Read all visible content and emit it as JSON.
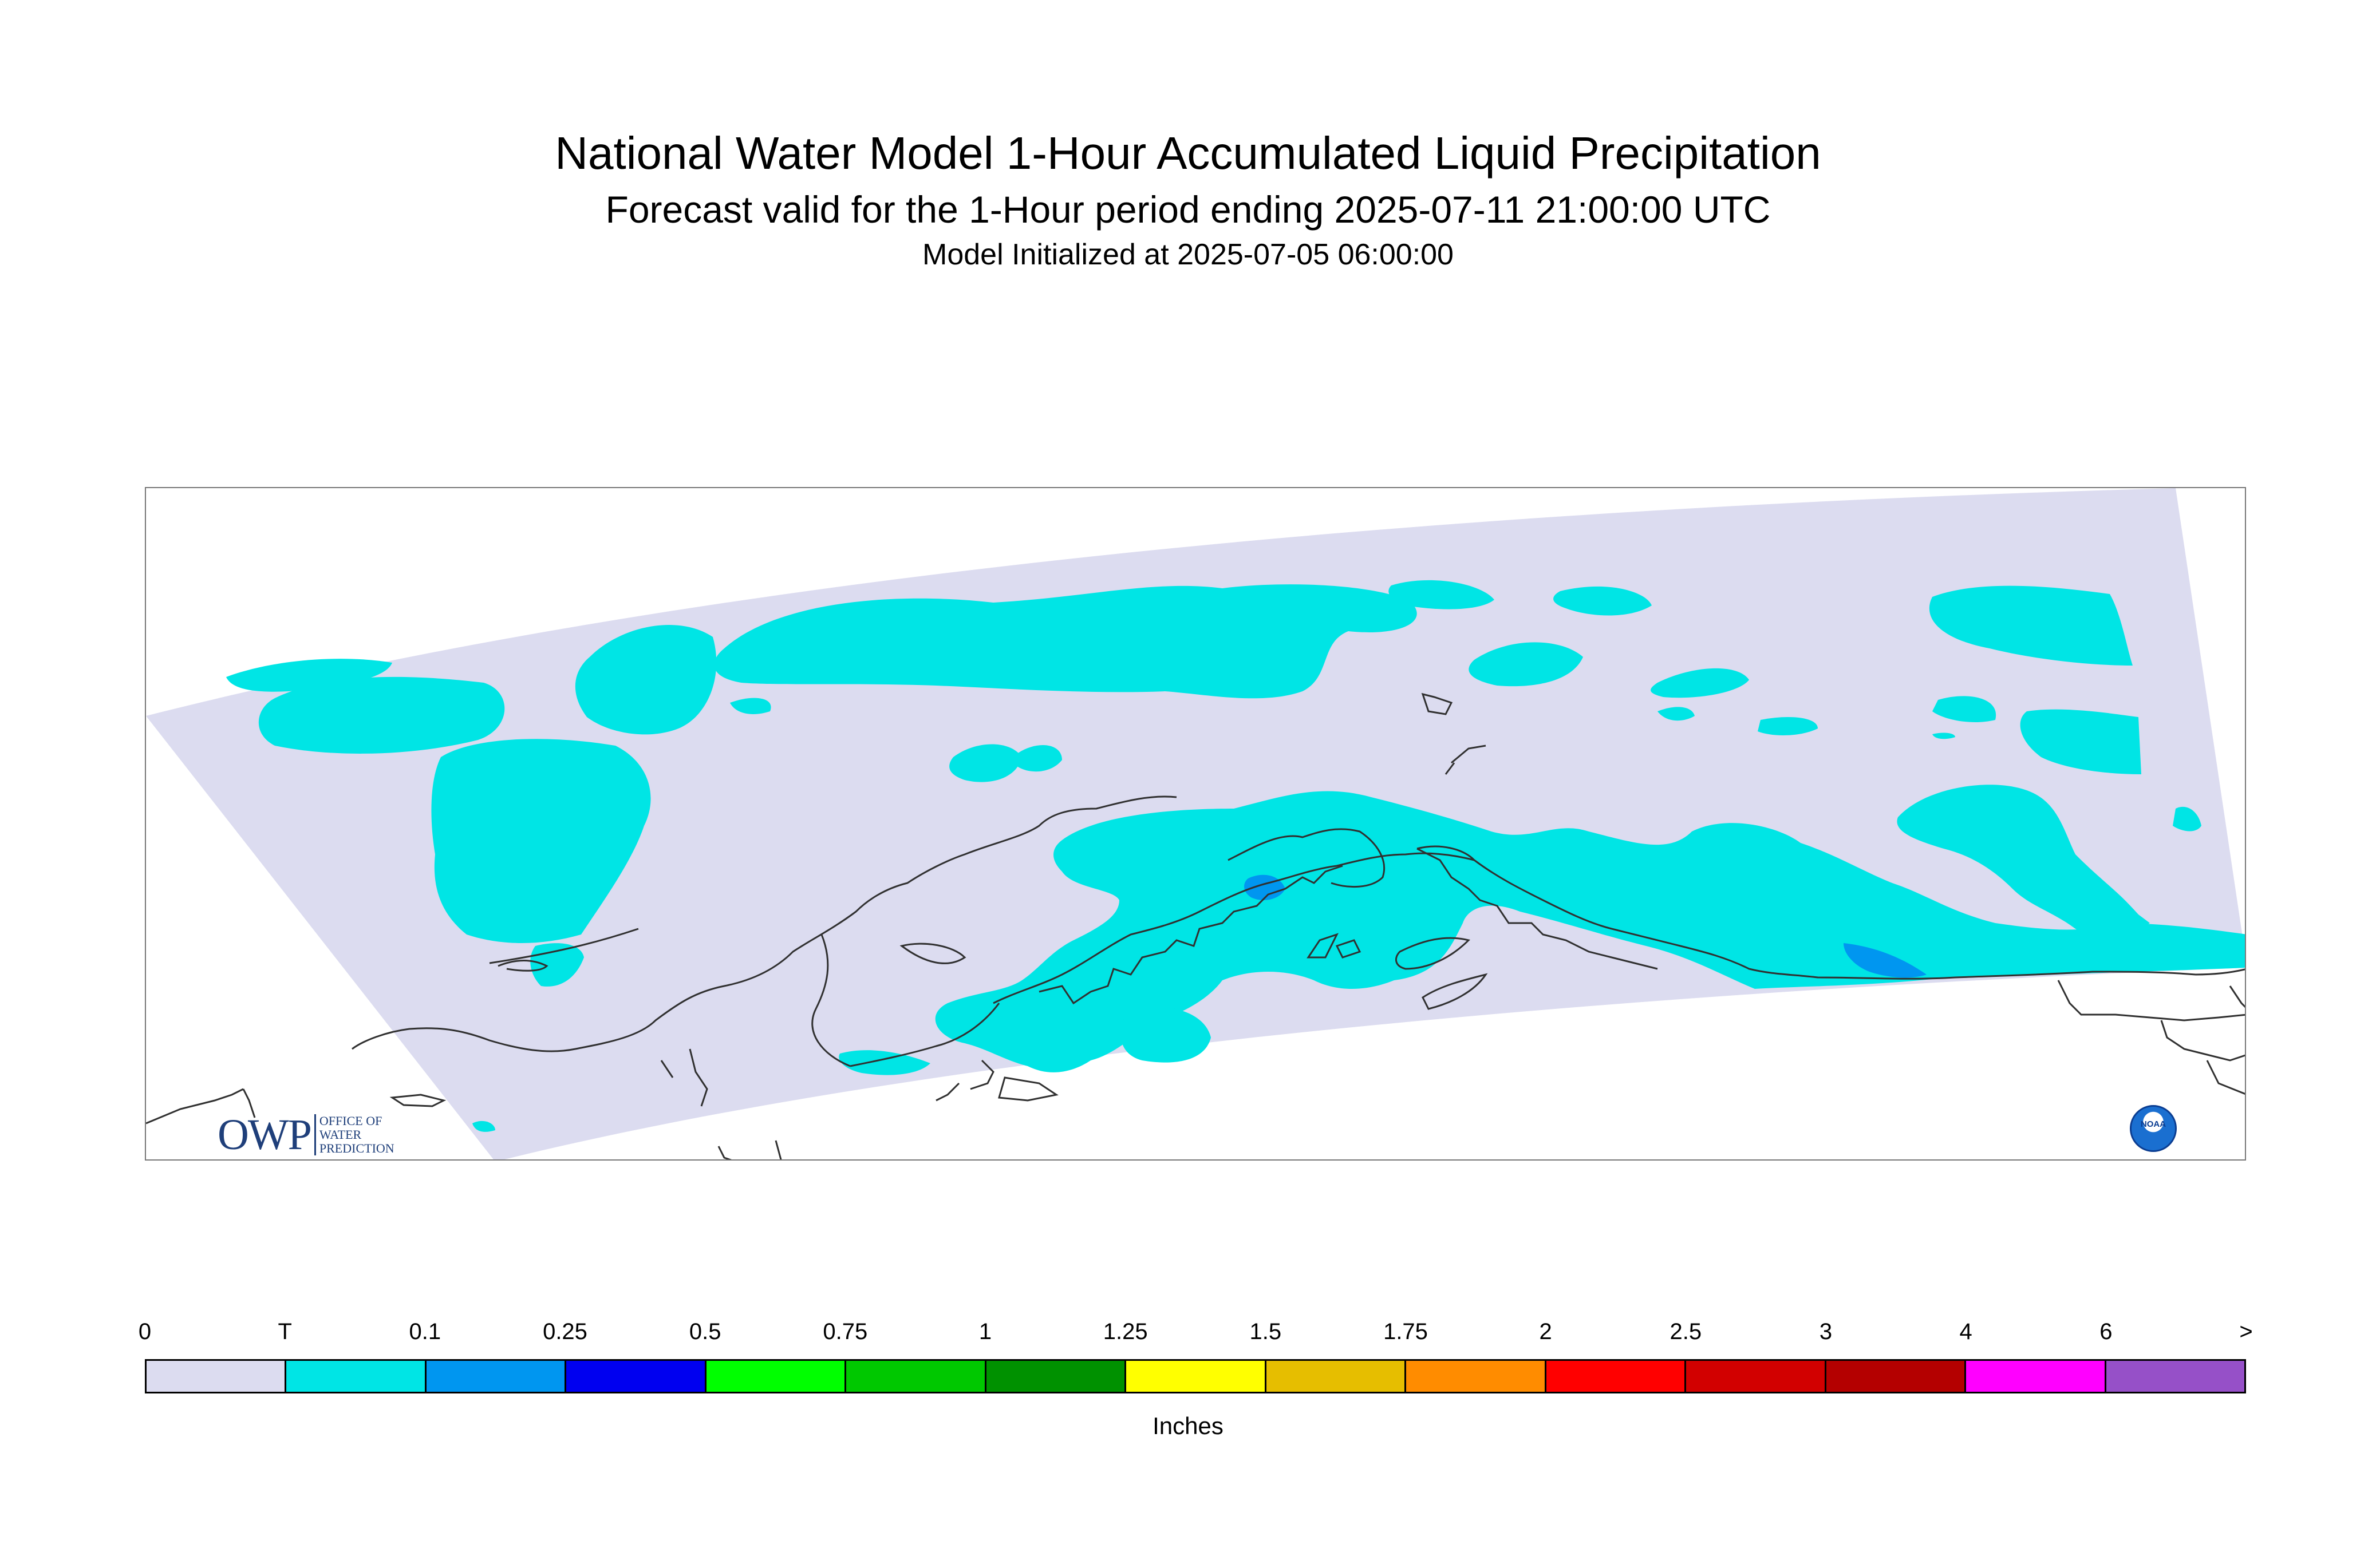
{
  "header": {
    "title": "National Water Model 1-Hour Accumulated Liquid Precipitation",
    "subtitle": "Forecast valid for the 1-Hour period ending 2025-07-11 21:00:00 UTC",
    "init": "Model Initialized at 2025-07-05 06:00:00"
  },
  "map": {
    "domain_fill_color": "#dcdcf0",
    "precip_color_trace": "#00e5e5",
    "precip_color_01": "#0096f0",
    "coastline_color": "#303030",
    "logos": {
      "owp_mark": "OWP",
      "owp_lines": [
        "OFFICE OF",
        "WATER",
        "PREDICTION"
      ],
      "noaa_text": "NOAA"
    }
  },
  "legend": {
    "units": "Inches",
    "tick_labels": [
      "0",
      "T",
      "0.1",
      "0.25",
      "0.5",
      "0.75",
      "1",
      "1.25",
      "1.5",
      "1.75",
      "2",
      "2.5",
      "3",
      "4",
      "6",
      ">"
    ],
    "colors": [
      "#dcdcf0",
      "#00e5e5",
      "#0096f0",
      "#0000f0",
      "#00ff00",
      "#00c800",
      "#009100",
      "#ffff00",
      "#e6be00",
      "#ff8c00",
      "#ff0000",
      "#d20000",
      "#b40000",
      "#ff00ff",
      "#9650c8"
    ]
  }
}
